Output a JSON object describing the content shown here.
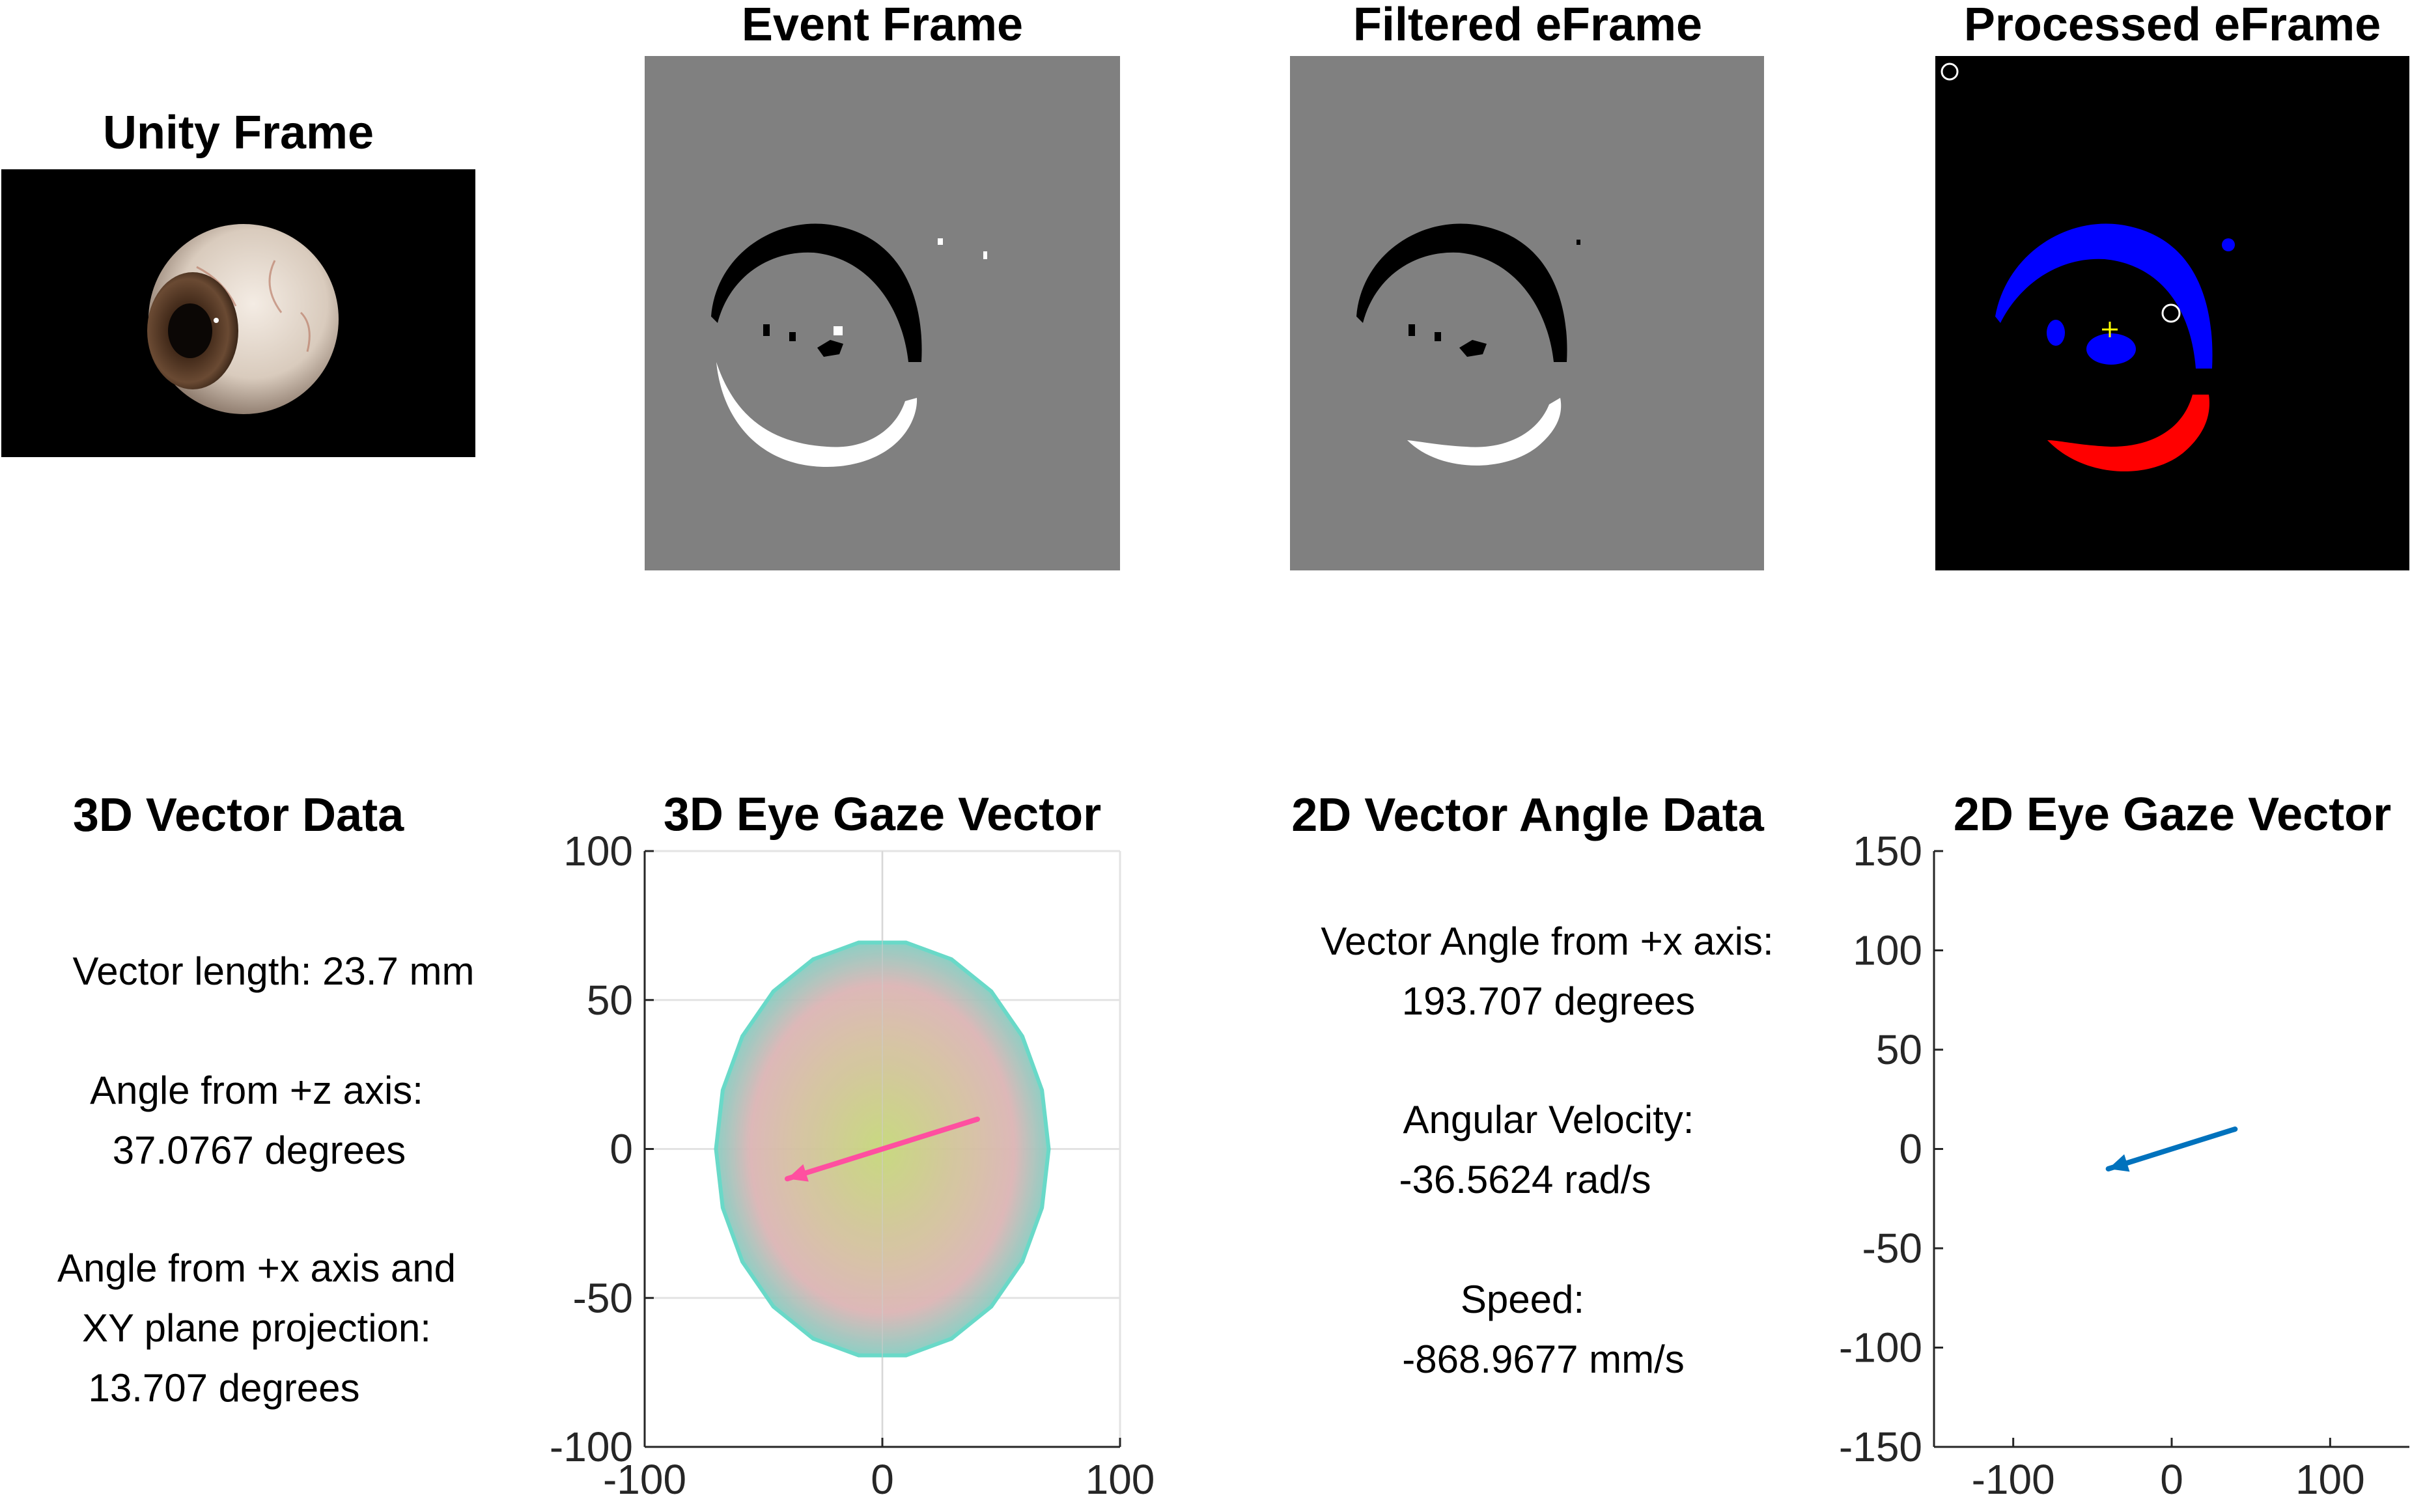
{
  "panels": {
    "unity": {
      "title": "Unity Frame"
    },
    "event": {
      "title": "Event Frame"
    },
    "filtered": {
      "title": "Filtered eFrame"
    },
    "processed": {
      "title": "Processed eFrame"
    },
    "vec3d_data": {
      "title": "3D Vector Data",
      "lines": [
        "Vector length: 23.7 mm",
        "Angle from +z axis:",
        "37.0767 degrees",
        "Angle from +x axis and",
        "XY plane projection:",
        "13.707 degrees"
      ]
    },
    "vec2d_data": {
      "title": "2D Vector Angle Data",
      "lines": [
        "Vector Angle from +x axis:",
        "193.707 degrees",
        "Angular Velocity:",
        "-36.5624 rad/s",
        "Speed:",
        "-868.9677 mm/s"
      ]
    }
  },
  "chart_data": [
    {
      "type": "line",
      "title": "3D Eye Gaze Vector",
      "xlim": [
        -100,
        100
      ],
      "ylim": [
        -100,
        100
      ],
      "xticks": [
        -100,
        0,
        100
      ],
      "yticks": [
        -100,
        -50,
        0,
        50,
        100
      ],
      "grid": true,
      "series": [
        {
          "color": "#ff4fa0",
          "x": [
            40,
            -40
          ],
          "y": [
            10,
            -10
          ],
          "arrow": true
        }
      ],
      "ellipsoid": {
        "center": [
          0,
          0
        ],
        "rx": 70,
        "ry": 70,
        "fill_colors": [
          "#c6d77a",
          "#dcb5b5",
          "#62d8c6"
        ]
      }
    },
    {
      "type": "line",
      "title": "2D Eye Gaze Vector",
      "xlim": [
        -150,
        150
      ],
      "ylim": [
        -150,
        150
      ],
      "xticks": [
        -100,
        0,
        100
      ],
      "yticks": [
        -150,
        -100,
        -50,
        0,
        50,
        100,
        150
      ],
      "grid": false,
      "series": [
        {
          "color": "#0072bd",
          "x": [
            40,
            -40
          ],
          "y": [
            10,
            -10
          ],
          "arrow": true
        }
      ]
    }
  ],
  "colors": {
    "event_gray": "#808080",
    "processed_bg": "#000000",
    "blue_cluster": "#0000ff",
    "red_cluster": "#ff0000",
    "center_marker": "#ffff00"
  }
}
